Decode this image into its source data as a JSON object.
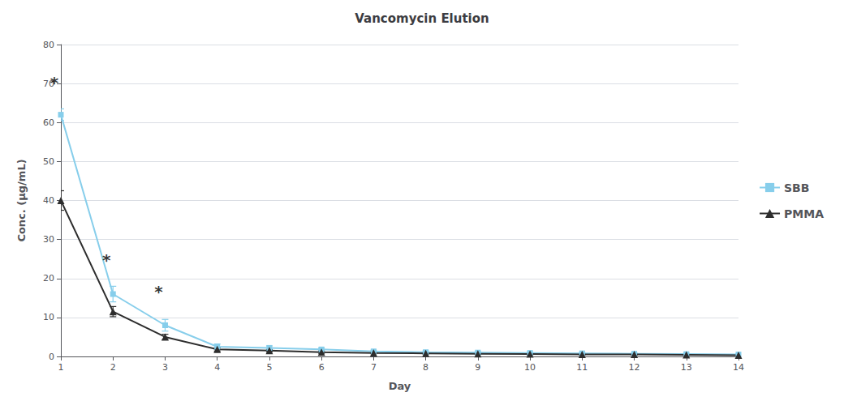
{
  "chart_data": {
    "type": "line",
    "title": "Vancomycin Elution",
    "x_label": "Day",
    "y_label": "Conc. (μg/mL)",
    "x": [
      1,
      2,
      3,
      4,
      5,
      6,
      7,
      8,
      9,
      10,
      11,
      12,
      13,
      14
    ],
    "xlim": [
      1,
      14
    ],
    "xticks": [
      1,
      2,
      3,
      4,
      5,
      6,
      7,
      8,
      9,
      10,
      11,
      12,
      13,
      14
    ],
    "ylim": [
      0,
      80
    ],
    "yticks": [
      0,
      10,
      20,
      30,
      40,
      50,
      60,
      70,
      80
    ],
    "grid": true,
    "legend": "right",
    "series": [
      {
        "name": "SBB",
        "color": "#87CEEB",
        "marker": "square",
        "values": [
          62,
          16,
          8.0,
          2.5,
          2.2,
          1.8,
          1.3,
          1.1,
          1.0,
          0.9,
          0.8,
          0.7,
          0.6,
          0.5
        ],
        "errors": [
          1.5,
          2.0,
          1.5,
          0.7,
          0.5,
          0.4,
          0.3,
          0.3,
          0.2,
          0.2,
          0.2,
          0.2,
          0.2,
          0.2
        ]
      },
      {
        "name": "PMMA",
        "color": "#2d2d2d",
        "marker": "triangle",
        "values": [
          40,
          11.5,
          5.0,
          1.8,
          1.5,
          1.1,
          0.9,
          0.8,
          0.7,
          0.6,
          0.5,
          0.5,
          0.4,
          0.3
        ],
        "errors": [
          2.5,
          1.3,
          0.7,
          0.4,
          0.3,
          0.3,
          0.2,
          0.2,
          0.2,
          0.2,
          0.2,
          0.2,
          0.2,
          0.1
        ]
      }
    ],
    "annotations": [
      {
        "text": "*",
        "x": 1,
        "y": 71
      },
      {
        "text": "*",
        "x": 2,
        "y": 25.5
      },
      {
        "text": "*",
        "x": 3,
        "y": 17.5
      }
    ]
  }
}
